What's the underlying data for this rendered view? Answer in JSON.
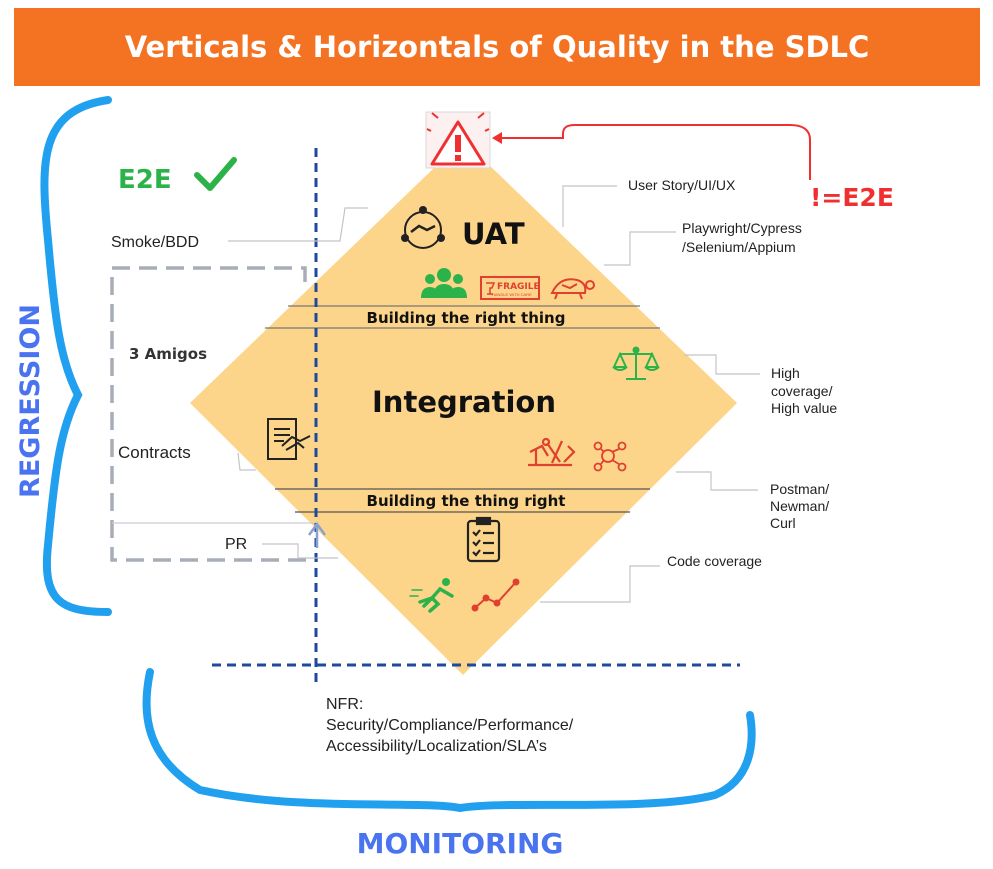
{
  "title": "Verticals & Horizontals of Quality in the SDLC",
  "colors": {
    "banner": "#f47323",
    "diamond": "#fdd58a",
    "bracket": "#22a0f0",
    "dashed_axis": "#1d4a9c",
    "gray_box": "#a7aeb8",
    "red": "#f03030",
    "green": "#2bb34a",
    "side_label": "#4a73f0"
  },
  "labels": {
    "e2e": "E2E",
    "not_e2e": "!=E2E",
    "uat": "UAT",
    "integration": "Integration",
    "building_right_thing": "Building the right thing",
    "building_thing_right": "Building the thing right",
    "three_amigos": "3 Amigos",
    "smoke_bdd": "Smoke/BDD",
    "contracts": "Contracts",
    "pr": "PR",
    "user_story": "User Story/UI/UX",
    "playwright_line1": "Playwright/Cypress",
    "playwright_line2": "/Selenium/Appium",
    "coverage_line1": "High",
    "coverage_line2": "coverage/",
    "coverage_line3": "High value",
    "postman_line1": "Postman/",
    "postman_line2": "Newman/",
    "postman_line3": "Curl",
    "code_coverage": "Code coverage",
    "nfr_line1": "NFR:",
    "nfr_line2": "Security/Compliance/Performance/",
    "nfr_line3": "Accessibility/Localization/SLA’s",
    "fragile": "FRAGILE",
    "fragile_sub": "HANDLE WITH CARE",
    "regression": "REGRESSION",
    "monitoring": "MONITORING"
  },
  "icons": {
    "warning": "warning-icon",
    "check": "check-icon",
    "handshake_circle": "handshake-circle-icon",
    "team": "team-icon",
    "fragile": "fragile-box-icon",
    "turtle": "turtle-icon",
    "scale": "balance-scale-icon",
    "contract": "contract-handshake-icon",
    "tools": "tools-icon",
    "network": "network-gear-icon",
    "checklist": "checklist-icon",
    "runner": "runner-icon",
    "trend": "trend-line-icon"
  }
}
